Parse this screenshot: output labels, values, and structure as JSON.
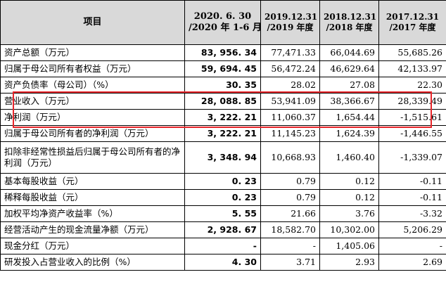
{
  "header": {
    "item": "项目",
    "columns": [
      [
        "2020. 6. 30",
        "/2020 年 1-6 月"
      ],
      [
        "2019.12.31",
        "/2019 年度"
      ],
      [
        "2018.12.31",
        "/2018 年度"
      ],
      [
        "2017.12.31",
        "/2017 年度"
      ]
    ]
  },
  "rows": [
    {
      "label": "资产总额（万元）",
      "values": [
        "83, 956. 34",
        "77,471.33",
        "66,044.69",
        "55,685.26"
      ]
    },
    {
      "label": "归属于母公司所有者权益（万元）",
      "values": [
        "59, 694. 45",
        "56,472.24",
        "46,629.64",
        "42,133.97"
      ]
    },
    {
      "label": "资产负债率（母公司）（%）",
      "values": [
        "30. 35",
        "28.02",
        "27.08",
        "22.30"
      ]
    },
    {
      "label": "营业收入（万元）",
      "values": [
        "28, 088. 85",
        "53,941.09",
        "38,366.67",
        "28,339.49"
      ]
    },
    {
      "label": "净利润（万元）",
      "values": [
        "3, 222. 21",
        "11,060.37",
        "1,654.44",
        "-1,515.61"
      ]
    },
    {
      "label": "归属于母公司所有者的净利润（万元）",
      "values": [
        "3, 222. 21",
        "11,145.23",
        "1,624.39",
        "-1,446.55"
      ]
    },
    {
      "label": "扣除非经常性损益后归属于母公司所有者的净利润（万元）",
      "values": [
        "3, 348. 94",
        "10,668.93",
        "1,460.40",
        "-1,339.07"
      ]
    },
    {
      "label": "基本每股收益（元）",
      "values": [
        "0. 23",
        "0.79",
        "0.12",
        "-0.11"
      ]
    },
    {
      "label": "稀释每股收益（元）",
      "values": [
        "0. 23",
        "0.79",
        "0.12",
        "-0.11"
      ]
    },
    {
      "label": "加权平均净资产收益率（%）",
      "values": [
        "5. 55",
        "21.66",
        "3.76",
        "-3.32"
      ]
    },
    {
      "label": "经营活动产生的现金流量净额（万元）",
      "values": [
        "2, 928. 67",
        "18,582.70",
        "10,302.00",
        "5,206.29"
      ]
    },
    {
      "label": "现金分红（万元）",
      "values": [
        "-",
        "-",
        "1,405.06",
        "-"
      ]
    },
    {
      "label": "研发投入占营业收入的比例（%）",
      "values": [
        "4. 30",
        "3.71",
        "2.93",
        "2.69"
      ]
    }
  ],
  "highlight_color": "#e8262b",
  "header_bg": "#d9d9d9"
}
